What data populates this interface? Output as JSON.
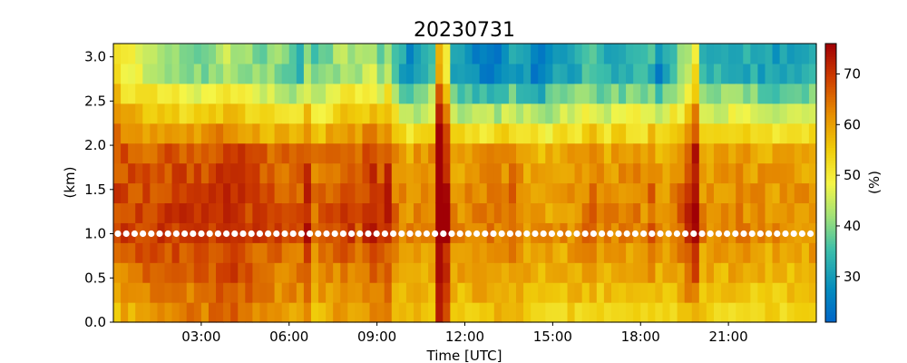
{
  "chart_data": {
    "type": "heatmap",
    "title": "20230731",
    "xlabel": "Time [UTC]",
    "ylabel": "(km)",
    "colorbar_label": "(%)",
    "xlim": [
      0,
      24
    ],
    "ylim": [
      0,
      3.15
    ],
    "x_ticks": [
      {
        "value": 3,
        "label": "03:00"
      },
      {
        "value": 6,
        "label": "06:00"
      },
      {
        "value": 9,
        "label": "09:00"
      },
      {
        "value": 12,
        "label": "12:00"
      },
      {
        "value": 15,
        "label": "15:00"
      },
      {
        "value": 18,
        "label": "18:00"
      },
      {
        "value": 21,
        "label": "21:00"
      }
    ],
    "y_ticks": [
      {
        "value": 0.0,
        "label": "0.0"
      },
      {
        "value": 0.5,
        "label": "0.5"
      },
      {
        "value": 1.0,
        "label": "1.0"
      },
      {
        "value": 1.5,
        "label": "1.5"
      },
      {
        "value": 2.0,
        "label": "2.0"
      },
      {
        "value": 2.5,
        "label": "2.5"
      },
      {
        "value": 3.0,
        "label": "3.0"
      }
    ],
    "colorbar": {
      "colormap": "jet-like (blue → cyan → green → yellow → orange → dark red)",
      "vmin": 21,
      "vmax": 76,
      "ticks": [
        {
          "value": 30,
          "label": "30"
        },
        {
          "value": 40,
          "label": "40"
        },
        {
          "value": 50,
          "label": "50"
        },
        {
          "value": 60,
          "label": "60"
        },
        {
          "value": 70,
          "label": "70"
        }
      ]
    },
    "reference_line": {
      "y": 1.0,
      "style": "white dotted markers"
    },
    "upper_layer_keyframes": {
      "description": "approximate value at ~2.9 km vs time (hours UTC)",
      "points": [
        [
          0,
          55
        ],
        [
          0.5,
          48
        ],
        [
          1,
          46
        ],
        [
          2,
          43
        ],
        [
          3,
          40
        ],
        [
          4,
          44
        ],
        [
          5,
          40
        ],
        [
          5.8,
          41
        ],
        [
          6.3,
          33
        ],
        [
          7,
          38
        ],
        [
          8,
          45
        ],
        [
          8.5,
          41
        ],
        [
          9,
          36
        ],
        [
          9.5,
          40
        ],
        [
          10,
          28
        ],
        [
          10.8,
          31
        ],
        [
          11.2,
          57
        ],
        [
          11.6,
          30
        ],
        [
          12.2,
          28
        ],
        [
          13,
          25
        ],
        [
          14,
          30
        ],
        [
          14.5,
          23
        ],
        [
          15,
          30
        ],
        [
          16,
          33
        ],
        [
          17,
          32
        ],
        [
          18,
          35
        ],
        [
          18.6,
          25
        ],
        [
          19.2,
          38
        ],
        [
          19.6,
          40
        ],
        [
          19.8,
          48
        ],
        [
          20.1,
          33
        ],
        [
          21,
          34
        ],
        [
          22,
          32
        ],
        [
          23,
          30
        ],
        [
          24,
          33
        ]
      ]
    },
    "lower_layer_keyframes": {
      "description": "approximate value at ~0.4 km vs time (hours UTC)",
      "points": [
        [
          0,
          56
        ],
        [
          1,
          59
        ],
        [
          2,
          63
        ],
        [
          3,
          62
        ],
        [
          4,
          65
        ],
        [
          5,
          61
        ],
        [
          6,
          60
        ],
        [
          7,
          57
        ],
        [
          8,
          59
        ],
        [
          9,
          58
        ],
        [
          10,
          55
        ],
        [
          11,
          56
        ],
        [
          11.2,
          72
        ],
        [
          11.5,
          56
        ],
        [
          12,
          55
        ],
        [
          13,
          57
        ],
        [
          14,
          55
        ],
        [
          15,
          53
        ],
        [
          16,
          54
        ],
        [
          17,
          53
        ],
        [
          18,
          54
        ],
        [
          19,
          53
        ],
        [
          20,
          55
        ],
        [
          21,
          53
        ],
        [
          22,
          52
        ],
        [
          23,
          53
        ],
        [
          24,
          52
        ]
      ]
    },
    "moist_columns": [
      {
        "x": 11.2,
        "value": 72
      },
      {
        "x": 19.8,
        "value": 71
      },
      {
        "x": 8.8,
        "value": 70
      },
      {
        "x": 9.3,
        "value": 68
      },
      {
        "x": 6.6,
        "value": 67
      },
      {
        "x": 18.4,
        "value": 66
      },
      {
        "x": 13.6,
        "value": 63
      },
      {
        "x": 16.3,
        "value": 64
      }
    ]
  }
}
